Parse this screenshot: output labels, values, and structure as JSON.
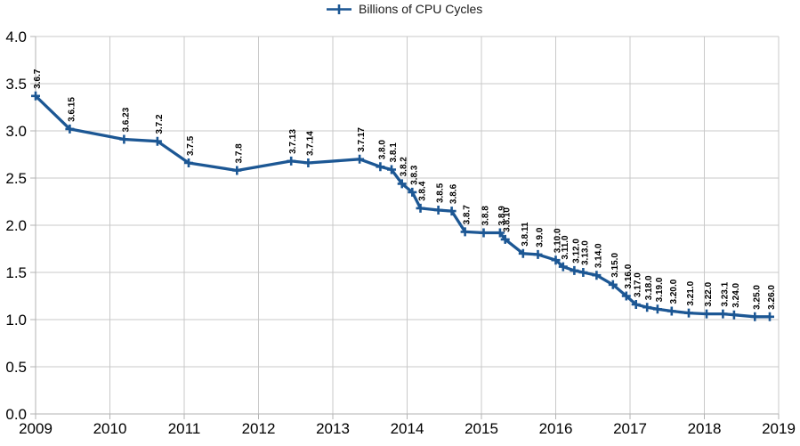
{
  "legend": {
    "label": "Billions of CPU Cycles"
  },
  "colors": {
    "series": "#1c5794",
    "grid": "#c9c9c9",
    "axis": "#b3b3b3",
    "tick": "#b3b3b3",
    "axis_text": "#000000",
    "point_label_text": "#000000"
  },
  "chart_data": {
    "type": "line",
    "title": "",
    "xlabel": "",
    "ylabel": "",
    "series_name": "Billions of CPU Cycles",
    "legend_position": "top-center",
    "grid": true,
    "marker": "plus",
    "x_axis": {
      "min": 2009,
      "max": 2019,
      "tick_labels": [
        "2009",
        "2010",
        "2011",
        "2012",
        "2013",
        "2014",
        "2015",
        "2016",
        "2017",
        "2018",
        "2019"
      ]
    },
    "y_axis": {
      "min": 0,
      "max": 4,
      "step": 0.5,
      "tick_labels": [
        "0.0",
        "0.5",
        "1.0",
        "1.5",
        "2.0",
        "2.5",
        "3.0",
        "3.5",
        "4.0"
      ]
    },
    "points": [
      {
        "label": "3.6.7",
        "x": 2009.0,
        "y": 3.37
      },
      {
        "label": "3.6.15",
        "x": 2009.46,
        "y": 3.02
      },
      {
        "label": "3.6.23",
        "x": 2010.19,
        "y": 2.91
      },
      {
        "label": "3.7.2",
        "x": 2010.64,
        "y": 2.89
      },
      {
        "label": "3.7.5",
        "x": 2011.06,
        "y": 2.66
      },
      {
        "label": "3.7.8",
        "x": 2011.71,
        "y": 2.58
      },
      {
        "label": "3.7.13",
        "x": 2012.44,
        "y": 2.68
      },
      {
        "label": "3.7.14",
        "x": 2012.67,
        "y": 2.66
      },
      {
        "label": "3.7.17",
        "x": 2013.36,
        "y": 2.7
      },
      {
        "label": "3.8.0",
        "x": 2013.64,
        "y": 2.62
      },
      {
        "label": "3.8.1",
        "x": 2013.79,
        "y": 2.59
      },
      {
        "label": "3.8.2",
        "x": 2013.93,
        "y": 2.44
      },
      {
        "label": "3.8.3",
        "x": 2014.07,
        "y": 2.35
      },
      {
        "label": "3.8.4",
        "x": 2014.18,
        "y": 2.18
      },
      {
        "label": "3.8.5",
        "x": 2014.42,
        "y": 2.16
      },
      {
        "label": "3.8.6",
        "x": 2014.6,
        "y": 2.15
      },
      {
        "label": "3.8.7",
        "x": 2014.78,
        "y": 1.93
      },
      {
        "label": "3.8.8",
        "x": 2015.03,
        "y": 1.92
      },
      {
        "label": "3.8.9",
        "x": 2015.25,
        "y": 1.92
      },
      {
        "label": "3.8.10",
        "x": 2015.32,
        "y": 1.85
      },
      {
        "label": "3.8.11",
        "x": 2015.56,
        "y": 1.7
      },
      {
        "label": "3.9.0",
        "x": 2015.76,
        "y": 1.69
      },
      {
        "label": "3.10.0",
        "x": 2016.0,
        "y": 1.63
      },
      {
        "label": "3.11.0",
        "x": 2016.1,
        "y": 1.56
      },
      {
        "label": "3.12.0",
        "x": 2016.25,
        "y": 1.52
      },
      {
        "label": "3.13.0",
        "x": 2016.37,
        "y": 1.5
      },
      {
        "label": "3.14.0",
        "x": 2016.55,
        "y": 1.47
      },
      {
        "label": "3.15.0",
        "x": 2016.77,
        "y": 1.37
      },
      {
        "label": "3.16.0",
        "x": 2016.95,
        "y": 1.25
      },
      {
        "label": "3.17.0",
        "x": 2017.08,
        "y": 1.16
      },
      {
        "label": "3.18.0",
        "x": 2017.23,
        "y": 1.13
      },
      {
        "label": "3.19.0",
        "x": 2017.37,
        "y": 1.11
      },
      {
        "label": "3.20.0",
        "x": 2017.56,
        "y": 1.09
      },
      {
        "label": "3.21.0",
        "x": 2017.79,
        "y": 1.07
      },
      {
        "label": "3.22.0",
        "x": 2018.03,
        "y": 1.06
      },
      {
        "label": "3.23.1",
        "x": 2018.25,
        "y": 1.06
      },
      {
        "label": "3.24.0",
        "x": 2018.4,
        "y": 1.05
      },
      {
        "label": "3.25.0",
        "x": 2018.68,
        "y": 1.03
      },
      {
        "label": "3.26.0",
        "x": 2018.88,
        "y": 1.03
      }
    ]
  }
}
